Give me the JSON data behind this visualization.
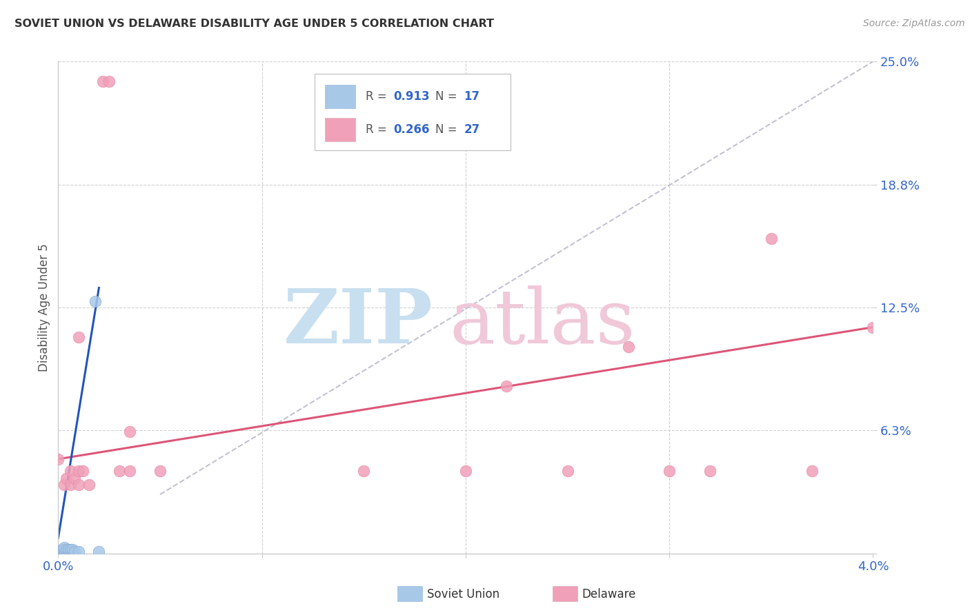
{
  "title": "SOVIET UNION VS DELAWARE DISABILITY AGE UNDER 5 CORRELATION CHART",
  "source": "Source: ZipAtlas.com",
  "ylabel": "Disability Age Under 5",
  "x_min": 0.0,
  "x_max": 0.04,
  "y_min": 0.0,
  "y_max": 0.25,
  "grid_color": "#d0d0d0",
  "background_color": "#ffffff",
  "soviet_color": "#a8c8e8",
  "delaware_color": "#f0a0b8",
  "soviet_line_color": "#2255bb",
  "delaware_line_color": "#dd5577",
  "diagonal_color": "#bbbbcc",
  "soviet_points": [
    [
      0.0002,
      0.001
    ],
    [
      0.0002,
      0.002
    ],
    [
      0.0003,
      0.001
    ],
    [
      0.0003,
      0.002
    ],
    [
      0.0003,
      0.003
    ],
    [
      0.0004,
      0.001
    ],
    [
      0.0004,
      0.002
    ],
    [
      0.0005,
      0.001
    ],
    [
      0.0005,
      0.002
    ],
    [
      0.0006,
      0.001
    ],
    [
      0.0006,
      0.002
    ],
    [
      0.0007,
      0.001
    ],
    [
      0.0007,
      0.002
    ],
    [
      0.0008,
      0.001
    ],
    [
      0.001,
      0.001
    ],
    [
      0.0018,
      0.128
    ],
    [
      0.002,
      0.001
    ]
  ],
  "delaware_points": [
    [
      0.0,
      0.048
    ],
    [
      0.0003,
      0.035
    ],
    [
      0.0004,
      0.038
    ],
    [
      0.0006,
      0.035
    ],
    [
      0.0006,
      0.042
    ],
    [
      0.0008,
      0.038
    ],
    [
      0.001,
      0.035
    ],
    [
      0.001,
      0.042
    ],
    [
      0.001,
      0.11
    ],
    [
      0.0012,
      0.042
    ],
    [
      0.0015,
      0.035
    ],
    [
      0.0022,
      0.24
    ],
    [
      0.0025,
      0.24
    ],
    [
      0.003,
      0.042
    ],
    [
      0.0035,
      0.062
    ],
    [
      0.0035,
      0.042
    ],
    [
      0.005,
      0.042
    ],
    [
      0.015,
      0.042
    ],
    [
      0.02,
      0.042
    ],
    [
      0.022,
      0.085
    ],
    [
      0.025,
      0.042
    ],
    [
      0.028,
      0.105
    ],
    [
      0.03,
      0.042
    ],
    [
      0.032,
      0.042
    ],
    [
      0.035,
      0.16
    ],
    [
      0.037,
      0.042
    ],
    [
      0.04,
      0.115
    ]
  ],
  "soviet_trendline": [
    [
      0.0,
      0.008
    ],
    [
      0.002,
      0.135
    ]
  ],
  "delaware_trendline": [
    [
      0.0,
      0.048
    ],
    [
      0.04,
      0.115
    ]
  ],
  "diagonal_line": [
    [
      0.005,
      0.03
    ],
    [
      0.04,
      0.25
    ]
  ]
}
